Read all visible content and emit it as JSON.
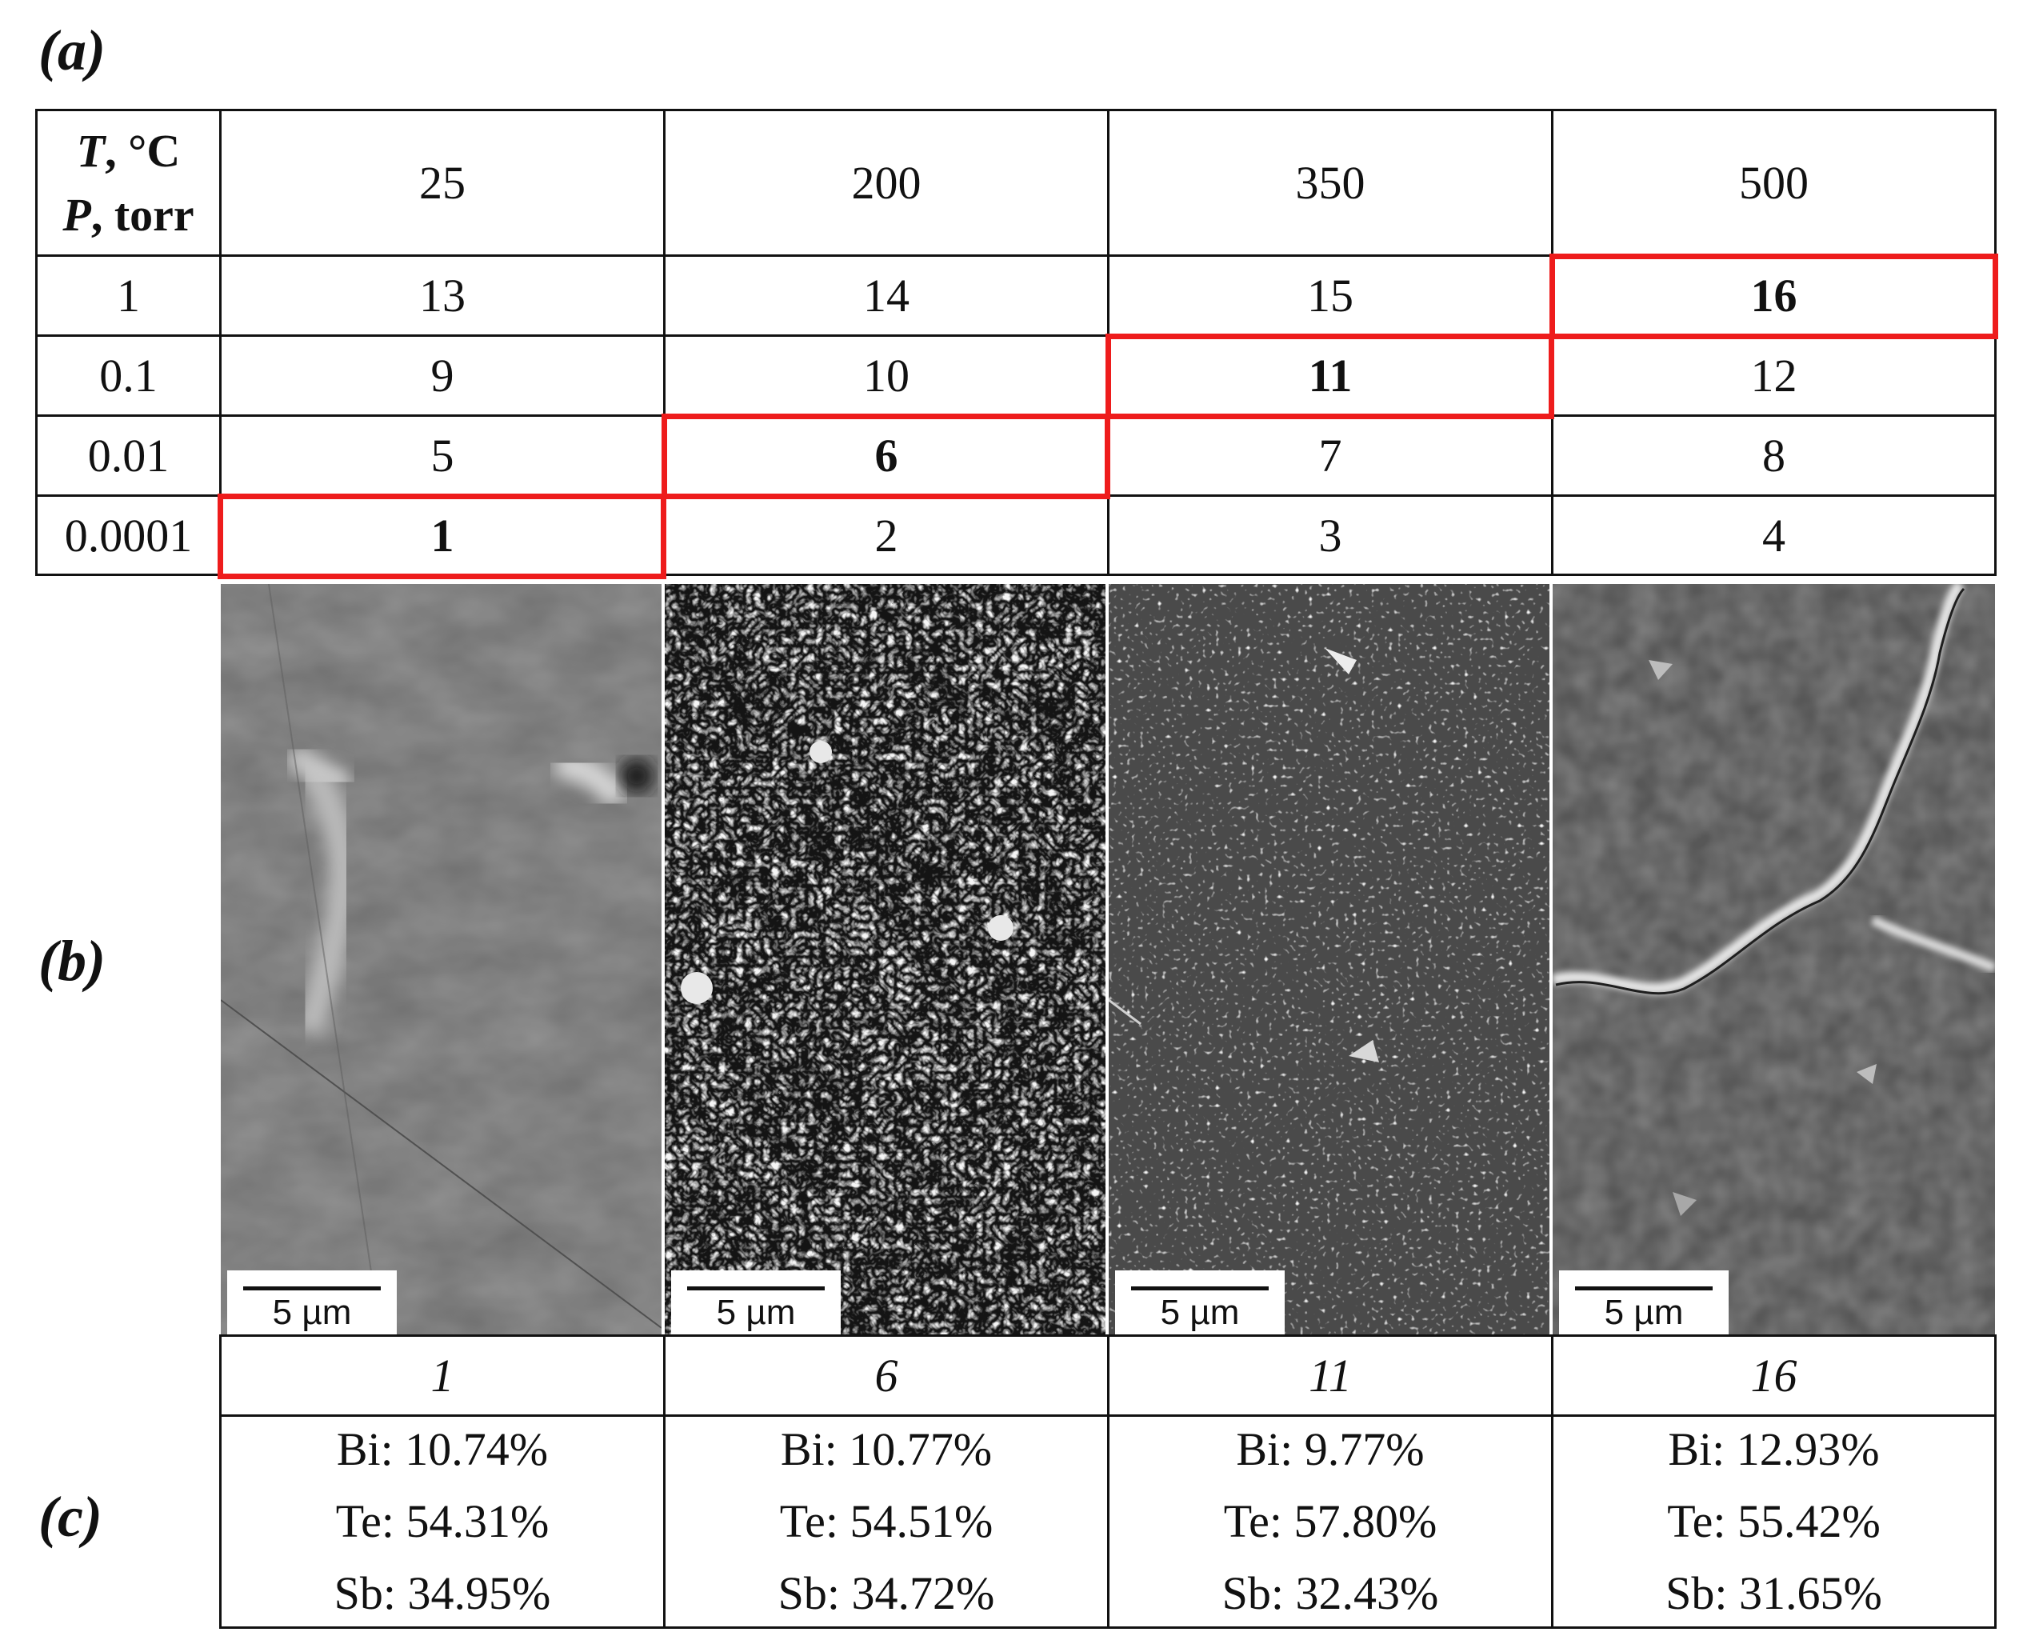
{
  "labels": {
    "a": "(a)",
    "b": "(b)",
    "c": "(c)"
  },
  "table_a": {
    "header": {
      "t_label": "T",
      "t_unit": ", °C",
      "p_label": "P",
      "p_unit": ", torr"
    },
    "temperatures": [
      "25",
      "200",
      "350",
      "500"
    ],
    "rows": [
      {
        "pressure": "1",
        "cells": [
          "13",
          "14",
          "15",
          "16"
        ]
      },
      {
        "pressure": "0.1",
        "cells": [
          "9",
          "10",
          "11",
          "12"
        ]
      },
      {
        "pressure": "0.01",
        "cells": [
          "5",
          "6",
          "7",
          "8"
        ]
      },
      {
        "pressure": "0.0001",
        "cells": [
          "1",
          "2",
          "3",
          "4"
        ]
      }
    ],
    "highlighted": [
      "16",
      "11",
      "6",
      "1"
    ],
    "highlight_color": "#ee1c1c"
  },
  "sem_images": [
    {
      "scale_bar": "5 µm"
    },
    {
      "scale_bar": "5 µm"
    },
    {
      "scale_bar": "5 µm"
    },
    {
      "scale_bar": "5 µm"
    }
  ],
  "table_c": {
    "samples": [
      "1",
      "6",
      "11",
      "16"
    ],
    "compositions": [
      {
        "bi": "Bi: 10.74%",
        "te": "Te: 54.31%",
        "sb": "Sb: 34.95%"
      },
      {
        "bi": "Bi: 10.77%",
        "te": "Te: 54.51%",
        "sb": "Sb: 34.72%"
      },
      {
        "bi": "Bi: 9.77%",
        "te": "Te: 57.80%",
        "sb": "Sb: 32.43%"
      },
      {
        "bi": "Bi: 12.93%",
        "te": "Te: 55.42%",
        "sb": "Sb: 31.65%"
      }
    ]
  }
}
